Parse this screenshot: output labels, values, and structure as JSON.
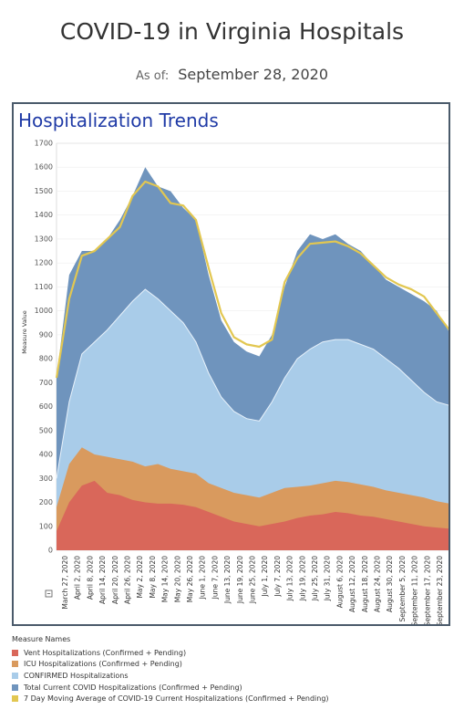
{
  "title": "COVID-19 in Virginia Hospitals",
  "as_of_label": "As of:",
  "as_of_date": "September 28, 2020",
  "panel_title": "Hospitalization Trends",
  "legend_title": "Measure Names",
  "chart_data": {
    "type": "area",
    "title": "Hospitalization Trends",
    "ylabel": "Measure Value",
    "ylim": [
      0,
      1700
    ],
    "yticks": [
      0,
      100,
      200,
      300,
      400,
      500,
      600,
      700,
      800,
      900,
      1000,
      1100,
      1200,
      1300,
      1400,
      1500,
      1600,
      1700
    ],
    "grid": true,
    "legend_position": "bottom-left",
    "x_tick_labels": [
      "March 27, 2020",
      "April 2, 2020",
      "April 8, 2020",
      "April 14, 2020",
      "April 20, 2020",
      "April 26, 2020",
      "May 2, 2020",
      "May 8, 2020",
      "May 14, 2020",
      "May 20, 2020",
      "May 26, 2020",
      "June 1, 2020",
      "June 7, 2020",
      "June 13, 2020",
      "June 19, 2020",
      "June 25, 2020",
      "July 1, 2020",
      "July 7, 2020",
      "July 13, 2020",
      "July 19, 2020",
      "July 25, 2020",
      "July 31, 2020",
      "August 6, 2020",
      "August 12, 2020",
      "August 18, 2020",
      "August 24, 2020",
      "August 30, 2020",
      "September 5, 2020",
      "September 11, 2020",
      "September 17, 2020",
      "September 23, 2020"
    ],
    "x": [
      "March 27, 2020",
      "April 2, 2020",
      "April 8, 2020",
      "April 14, 2020",
      "April 20, 2020",
      "April 26, 2020",
      "May 2, 2020",
      "May 8, 2020",
      "May 14, 2020",
      "May 20, 2020",
      "May 26, 2020",
      "June 1, 2020",
      "June 7, 2020",
      "June 13, 2020",
      "June 19, 2020",
      "June 25, 2020",
      "July 1, 2020",
      "July 7, 2020",
      "July 13, 2020",
      "July 19, 2020",
      "July 25, 2020",
      "July 31, 2020",
      "August 6, 2020",
      "August 12, 2020",
      "August 18, 2020",
      "August 24, 2020",
      "August 30, 2020",
      "September 5, 2020",
      "September 11, 2020",
      "September 17, 2020",
      "September 23, 2020",
      "September 28, 2020"
    ],
    "series": [
      {
        "name": "Vent Hospitalizations (Confirmed + Pending)",
        "color": "#d9675a",
        "type": "area",
        "values": [
          80,
          200,
          270,
          290,
          240,
          230,
          210,
          200,
          195,
          195,
          190,
          180,
          160,
          140,
          120,
          110,
          100,
          110,
          120,
          135,
          145,
          150,
          160,
          155,
          145,
          140,
          130,
          120,
          110,
          100,
          95,
          90
        ]
      },
      {
        "name": "ICU Hospitalizations (Confirmed + Pending)",
        "color": "#d99a5e",
        "type": "area",
        "values": [
          180,
          360,
          430,
          400,
          390,
          380,
          370,
          350,
          360,
          340,
          330,
          320,
          280,
          260,
          240,
          230,
          220,
          240,
          260,
          265,
          270,
          280,
          290,
          285,
          275,
          265,
          250,
          240,
          230,
          220,
          205,
          195
        ]
      },
      {
        "name": "CONFIRMED Hospitalizations",
        "color": "#a9cce9",
        "type": "area",
        "values": [
          300,
          620,
          820,
          870,
          920,
          980,
          1040,
          1090,
          1050,
          1000,
          950,
          870,
          740,
          640,
          580,
          550,
          540,
          620,
          720,
          800,
          840,
          870,
          880,
          880,
          860,
          840,
          800,
          760,
          710,
          660,
          620,
          605
        ]
      },
      {
        "name": "Total Current COVID Hospitalizations (Confirmed + Pending)",
        "color": "#6f94bd",
        "type": "area",
        "values": [
          720,
          1150,
          1250,
          1250,
          1300,
          1380,
          1480,
          1600,
          1520,
          1500,
          1430,
          1380,
          1150,
          960,
          870,
          830,
          810,
          900,
          1100,
          1250,
          1320,
          1300,
          1320,
          1280,
          1250,
          1190,
          1130,
          1100,
          1070,
          1040,
          1000,
          910
        ]
      },
      {
        "name": "7 Day Moving Average of COVID-19 Current Hospitalizations (Confirmed + Pending)",
        "color": "#e2c751",
        "type": "line",
        "values": [
          720,
          1050,
          1230,
          1250,
          1300,
          1350,
          1480,
          1540,
          1520,
          1450,
          1440,
          1380,
          1180,
          990,
          890,
          860,
          850,
          880,
          1120,
          1220,
          1280,
          1285,
          1290,
          1270,
          1240,
          1190,
          1140,
          1110,
          1090,
          1060,
          990,
          920
        ]
      }
    ]
  }
}
